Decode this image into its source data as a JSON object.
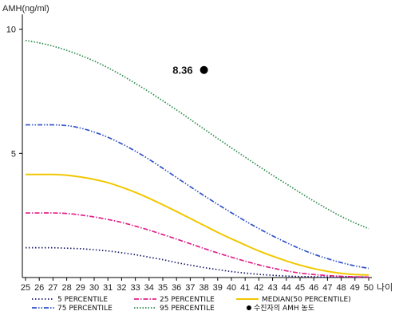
{
  "chart_data": {
    "type": "line",
    "ylabel": "AMH(ng/ml)",
    "xlabel": "나이",
    "x": [
      25,
      26,
      27,
      28,
      29,
      30,
      31,
      32,
      33,
      34,
      35,
      36,
      37,
      38,
      39,
      40,
      41,
      42,
      43,
      44,
      45,
      46,
      47,
      48,
      49,
      50
    ],
    "xlim": [
      25,
      50
    ],
    "ylim": [
      0,
      10.6
    ],
    "yticks": [
      5,
      10
    ],
    "series": [
      {
        "name": "5 PERCENTILE",
        "color": "#1a1a6e",
        "dash": "1.5,2.5",
        "values": [
          1.2,
          1.2,
          1.2,
          1.18,
          1.16,
          1.12,
          1.07,
          1.0,
          0.92,
          0.82,
          0.72,
          0.6,
          0.5,
          0.4,
          0.32,
          0.24,
          0.18,
          0.13,
          0.09,
          0.06,
          0.04,
          0.03,
          0.02,
          0.02,
          0.02,
          0.02
        ]
      },
      {
        "name": "25 PERCENTILE",
        "color": "#e0208a",
        "dash": "6,2,1.5,2",
        "values": [
          2.6,
          2.6,
          2.6,
          2.58,
          2.52,
          2.44,
          2.34,
          2.22,
          2.07,
          1.91,
          1.73,
          1.55,
          1.36,
          1.17,
          0.99,
          0.82,
          0.66,
          0.51,
          0.38,
          0.27,
          0.18,
          0.12,
          0.08,
          0.05,
          0.03,
          0.02
        ]
      },
      {
        "name": "MEDIAN(50 PERCENTILE)",
        "color": "#f2c700",
        "dash": "",
        "values": [
          4.15,
          4.15,
          4.15,
          4.12,
          4.05,
          3.95,
          3.82,
          3.64,
          3.43,
          3.19,
          2.93,
          2.66,
          2.38,
          2.1,
          1.82,
          1.56,
          1.31,
          1.07,
          0.86,
          0.67,
          0.5,
          0.36,
          0.25,
          0.17,
          0.12,
          0.1
        ]
      },
      {
        "name": "75 PERCENTILE",
        "color": "#3052c8",
        "dash": "6,2,1.5,2,1.5,2",
        "values": [
          6.15,
          6.15,
          6.15,
          6.12,
          6.02,
          5.86,
          5.65,
          5.39,
          5.09,
          4.76,
          4.4,
          4.03,
          3.66,
          3.3,
          2.95,
          2.61,
          2.28,
          1.97,
          1.68,
          1.41,
          1.16,
          0.94,
          0.76,
          0.6,
          0.47,
          0.37
        ]
      },
      {
        "name": "95 PERCENTILE",
        "color": "#2a8a4a",
        "dash": "1.5,2",
        "values": [
          9.55,
          9.45,
          9.32,
          9.15,
          8.95,
          8.72,
          8.45,
          8.15,
          7.82,
          7.48,
          7.12,
          6.75,
          6.37,
          5.98,
          5.6,
          5.22,
          4.85,
          4.48,
          4.12,
          3.77,
          3.42,
          3.08,
          2.76,
          2.46,
          2.2,
          1.97
        ]
      }
    ],
    "point": {
      "name": "수진자의 AMH 농도",
      "x": 38,
      "y": 8.36,
      "label": "8.36"
    },
    "legend_position": "bottom",
    "grid": false
  }
}
